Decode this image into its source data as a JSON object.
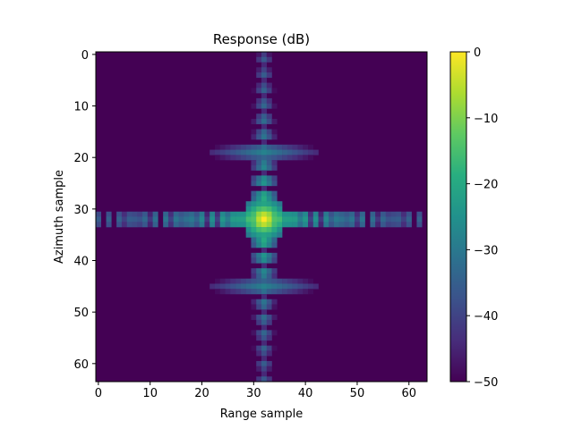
{
  "chart_data": {
    "type": "heatmap",
    "title": "Response (dB)",
    "xlabel": "Range sample",
    "ylabel": "Azimuth sample",
    "grid": false,
    "colormap": "viridis",
    "x_ticks": [
      0,
      10,
      20,
      30,
      40,
      50,
      60
    ],
    "y_ticks": [
      0,
      10,
      20,
      30,
      40,
      50,
      60
    ],
    "xlim": [
      -0.5,
      63.5
    ],
    "ylim": [
      63.5,
      -0.5
    ],
    "rows": 64,
    "cols": 64,
    "peak": {
      "x": 32,
      "y": 32,
      "value": 0
    },
    "floor_value": -50,
    "colorbar": {
      "label": "",
      "range": [
        -50,
        0
      ],
      "ticks": [
        0,
        -10,
        -20,
        -30,
        -40,
        -50
      ],
      "tick_labels": [
        "0",
        "−10",
        "−20",
        "−30",
        "−40",
        "−50"
      ],
      "location": "right"
    }
  }
}
